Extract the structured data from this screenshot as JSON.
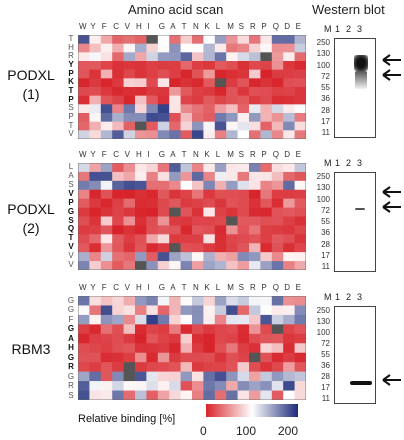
{
  "titles": {
    "amino_acid_scan": "Amino acid scan",
    "western_blot": "Western blot"
  },
  "amino_acids_top": "WYFCVHIGATNKLMSRPQDE",
  "panels": [
    {
      "label_line1": "PODXL",
      "label_line2": "(1)",
      "sequence": [
        "T",
        "H",
        "R",
        "Y",
        "P",
        "K",
        "T",
        "P",
        "S",
        "P",
        "T",
        "V"
      ],
      "bold_residues": [
        3,
        4,
        5,
        6,
        7
      ],
      "mw_markers": [
        "250",
        "130",
        "100",
        "72",
        "55",
        "36",
        "28",
        "17",
        "11"
      ],
      "lanes": [
        "M",
        "1",
        "2",
        "3"
      ]
    },
    {
      "label_line1": "PODXL",
      "label_line2": "(2)",
      "sequence": [
        "L",
        "A",
        "S",
        "V",
        "P",
        "G",
        "S",
        "Q",
        "T",
        "V",
        "V",
        "V"
      ],
      "bold_residues": [
        3,
        4,
        5,
        6,
        7,
        8,
        9
      ],
      "mw_markers": [
        "250",
        "130",
        "100",
        "72",
        "55",
        "36",
        "28",
        "17",
        "11"
      ],
      "lanes": [
        "M",
        "1",
        "2",
        "3"
      ]
    },
    {
      "label_line1": "RBM3",
      "label_line2": "",
      "sequence": [
        "G",
        "G",
        "F",
        "G",
        "A",
        "H",
        "G",
        "R",
        "G",
        "R",
        "S"
      ],
      "bold_residues": [
        3,
        4,
        5,
        6,
        7
      ],
      "mw_markers": [
        "250",
        "130",
        "100",
        "72",
        "55",
        "36",
        "28",
        "17",
        "11"
      ],
      "lanes": [
        "M",
        "1",
        "2",
        "3"
      ]
    }
  ],
  "colorbar": {
    "label": "Relative binding [%]",
    "ticks": [
      "0",
      "100",
      "200"
    ],
    "low_color": "#d7242a",
    "mid_color": "#ffffff",
    "high_color": "#1c2b7a"
  },
  "colors": {
    "red": "#d7242a",
    "blue": "#1c2b7a",
    "missing": "#555555"
  }
}
